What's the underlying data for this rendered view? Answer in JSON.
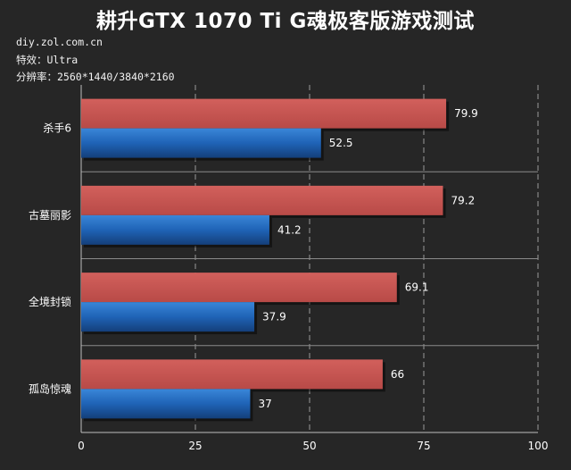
{
  "title": "耕升GTX 1070 Ti G魂极客版游戏测试",
  "source": "diy.zol.com.cn",
  "effects_line": "特效：Ultra",
  "resolution_line": "分辨率：2560*1440/3840*2160",
  "colors": {
    "background": "#262626",
    "series_1440": "#c0504d",
    "series_2160": "#1f63b6",
    "grid": "#9a9a9a",
    "text": "#ffffff"
  },
  "chart_data": {
    "type": "bar",
    "orientation": "horizontal",
    "categories": [
      "杀手6",
      "古墓丽影",
      "全境封锁",
      "孤岛惊魂"
    ],
    "series": [
      {
        "values": [
          79.9,
          79.2,
          69.1,
          66
        ],
        "color": "#c0504d"
      },
      {
        "values": [
          52.5,
          41.2,
          37.9,
          37
        ],
        "color": "#1f63b6"
      }
    ],
    "xlim": [
      0,
      100
    ],
    "xticks": [
      0,
      25,
      50,
      75,
      100
    ],
    "grid": true,
    "legend": "none"
  }
}
